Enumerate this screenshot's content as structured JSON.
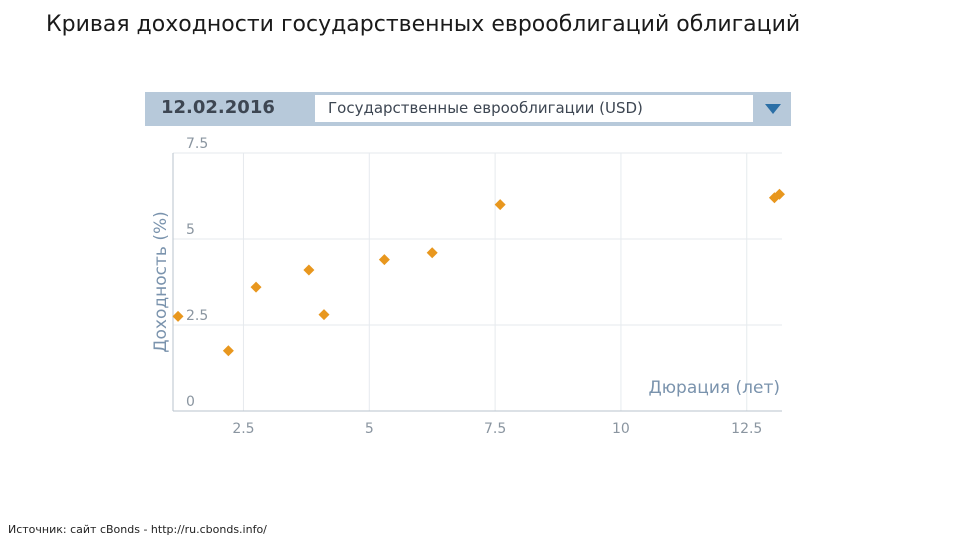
{
  "slide": {
    "title": "Кривая доходности государственных еврооблигаций облигаций",
    "source": "Источник: сайт cBonds - http://ru.cbonds.info/"
  },
  "widget": {
    "date": "12.02.2016",
    "selector": {
      "selected": "Государственные еврооблигации (USD)",
      "toggle_icon": "triangle-down-icon"
    },
    "colors": {
      "header_bg": "#b7c9da",
      "accent": "#2b6fa6",
      "point": "#e8971e"
    }
  },
  "chart_data": {
    "type": "scatter",
    "xlabel": "Дюрация (лет)",
    "ylabel": "Доходность (%)",
    "xlim": [
      1.1,
      13.2
    ],
    "ylim": [
      0,
      7.5
    ],
    "x_ticks": [
      "2.5",
      "5",
      "7.5",
      "10",
      "12.5"
    ],
    "x_tick_values": [
      2.5,
      5,
      7.5,
      10,
      12.5
    ],
    "y_ticks": [
      "0",
      "2.5",
      "5",
      "7.5"
    ],
    "y_tick_values": [
      0,
      2.5,
      5,
      7.5
    ],
    "grid": true,
    "series": [
      {
        "points": [
          {
            "x": 1.2,
            "y": 2.75
          },
          {
            "x": 2.2,
            "y": 1.75
          },
          {
            "x": 2.75,
            "y": 3.6
          },
          {
            "x": 3.8,
            "y": 4.1
          },
          {
            "x": 4.1,
            "y": 2.8
          },
          {
            "x": 5.3,
            "y": 4.4
          },
          {
            "x": 6.25,
            "y": 4.6
          },
          {
            "x": 7.6,
            "y": 6.0
          },
          {
            "x": 13.05,
            "y": 6.2
          },
          {
            "x": 13.15,
            "y": 6.3
          }
        ]
      }
    ]
  }
}
